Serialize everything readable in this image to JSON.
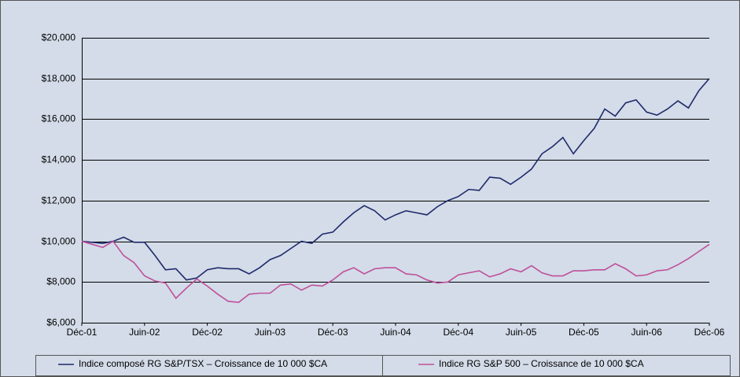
{
  "chart_data": {
    "type": "line",
    "categories": [
      "Déc-01",
      null,
      null,
      null,
      null,
      null,
      "Juin-02",
      null,
      null,
      null,
      null,
      null,
      "Déc-02",
      null,
      null,
      null,
      null,
      null,
      "Juin-03",
      null,
      null,
      null,
      null,
      null,
      "Déc-03",
      null,
      null,
      null,
      null,
      null,
      "Juin-04",
      null,
      null,
      null,
      null,
      null,
      "Déc-04",
      null,
      null,
      null,
      null,
      null,
      "Juin-05",
      null,
      null,
      null,
      null,
      null,
      "Déc-05",
      null,
      null,
      null,
      null,
      null,
      "Juin-06",
      null,
      null,
      null,
      null,
      null,
      "Déc-06"
    ],
    "series": [
      {
        "name": "Indice composé RG S&P/TSX – Croissance de 10 000 $CA",
        "color": "#1f2a6b",
        "values": [
          10000,
          9950,
          9900,
          10000,
          10200,
          9950,
          9950,
          9300,
          8600,
          8650,
          8100,
          8200,
          8600,
          8700,
          8650,
          8650,
          8400,
          8700,
          9100,
          9300,
          9650,
          10000,
          9900,
          10350,
          10450,
          10950,
          11400,
          11750,
          11500,
          11050,
          11300,
          11500,
          11400,
          11300,
          11700,
          12000,
          12200,
          12550,
          12500,
          13150,
          13100,
          12800,
          13150,
          13550,
          14300,
          14650,
          15100,
          14300,
          14950,
          15550,
          16500,
          16150,
          16800,
          16950,
          16350,
          16200,
          16500,
          16900,
          16550,
          17400,
          18000
        ]
      },
      {
        "name": "Indice RG S&P 500 – Croissance de 10 000 $CA",
        "color": "#c0509b",
        "values": [
          10000,
          9850,
          9700,
          10000,
          9300,
          8950,
          8300,
          8050,
          7950,
          7200,
          7700,
          8150,
          7800,
          7400,
          7050,
          7000,
          7400,
          7450,
          7450,
          7850,
          7900,
          7600,
          7850,
          7800,
          8100,
          8500,
          8700,
          8400,
          8650,
          8700,
          8700,
          8400,
          8350,
          8100,
          7950,
          8000,
          8350,
          8450,
          8550,
          8250,
          8400,
          8650,
          8500,
          8800,
          8450,
          8300,
          8300,
          8550,
          8550,
          8600,
          8600,
          8900,
          8650,
          8300,
          8350,
          8550,
          8600,
          8850,
          9150,
          9500,
          9850
        ]
      }
    ],
    "ylim": [
      6000,
      20000
    ],
    "yticks": [
      {
        "value": 6000,
        "label": "$6,000"
      },
      {
        "value": 8000,
        "label": "$8,000"
      },
      {
        "value": 10000,
        "label": "$10,000"
      },
      {
        "value": 12000,
        "label": "$12,000"
      },
      {
        "value": 14000,
        "label": "$14,000"
      },
      {
        "value": 16000,
        "label": "$16,000"
      },
      {
        "value": 18000,
        "label": "$18,000"
      },
      {
        "value": 20000,
        "label": "$20,000"
      }
    ],
    "grid": true,
    "legend": "bottom"
  }
}
